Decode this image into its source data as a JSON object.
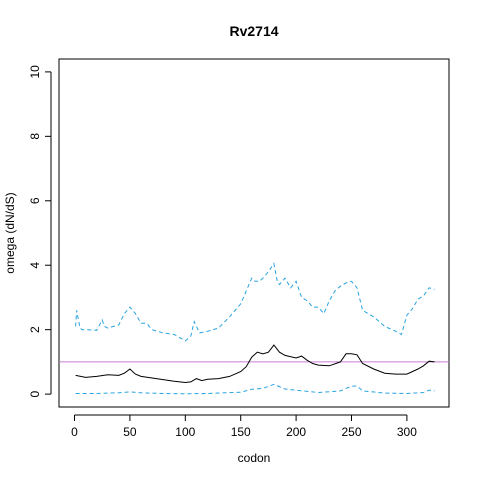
{
  "chart_data": {
    "type": "line",
    "title": "Rv2714",
    "xlabel": "codon",
    "ylabel": "omega (dN/dS)",
    "xlim": [
      -14,
      338
    ],
    "ylim": [
      -0.4,
      10.4
    ],
    "xticks": [
      0,
      50,
      100,
      150,
      200,
      250,
      300
    ],
    "yticks": [
      0,
      2,
      4,
      6,
      8,
      10
    ],
    "grid": false,
    "reference_line": {
      "y": 1.0,
      "color": "#c77fd0"
    },
    "series": [
      {
        "role": "estimate",
        "style": "solid",
        "color": "#000000",
        "x": [
          1,
          10,
          20,
          30,
          40,
          45,
          50,
          55,
          60,
          70,
          80,
          90,
          100,
          105,
          110,
          115,
          120,
          130,
          140,
          150,
          155,
          160,
          165,
          170,
          175,
          180,
          185,
          190,
          200,
          205,
          210,
          215,
          220,
          230,
          240,
          245,
          250,
          255,
          260,
          270,
          280,
          290,
          300,
          310,
          315,
          320,
          325
        ],
        "y": [
          0.58,
          0.52,
          0.55,
          0.6,
          0.58,
          0.65,
          0.78,
          0.62,
          0.55,
          0.5,
          0.45,
          0.4,
          0.36,
          0.38,
          0.48,
          0.42,
          0.46,
          0.48,
          0.55,
          0.7,
          0.85,
          1.15,
          1.3,
          1.25,
          1.3,
          1.52,
          1.3,
          1.2,
          1.12,
          1.18,
          1.05,
          0.95,
          0.9,
          0.88,
          1.0,
          1.25,
          1.25,
          1.22,
          0.95,
          0.78,
          0.65,
          0.62,
          0.62,
          0.78,
          0.88,
          1.02,
          1.0
        ]
      },
      {
        "role": "upper",
        "style": "dashed",
        "color": "#29a3e0",
        "x": [
          1,
          2,
          3,
          5,
          7,
          10,
          20,
          25,
          27,
          30,
          40,
          45,
          50,
          55,
          60,
          65,
          70,
          80,
          90,
          95,
          100,
          105,
          108,
          110,
          113,
          120,
          130,
          140,
          150,
          155,
          160,
          163,
          167,
          170,
          175,
          180,
          183,
          185,
          190,
          195,
          200,
          205,
          210,
          215,
          220,
          225,
          230,
          235,
          240,
          245,
          250,
          255,
          260,
          265,
          270,
          280,
          290,
          295,
          300,
          305,
          310,
          315,
          320,
          325
        ],
        "y": [
          2.1,
          2.6,
          2.4,
          2.05,
          2.0,
          2.0,
          1.98,
          2.3,
          2.1,
          2.05,
          2.15,
          2.5,
          2.7,
          2.5,
          2.2,
          2.2,
          2.0,
          1.9,
          1.85,
          1.75,
          1.65,
          1.8,
          2.25,
          2.1,
          1.9,
          1.95,
          2.05,
          2.4,
          2.8,
          3.2,
          3.6,
          3.5,
          3.5,
          3.6,
          3.8,
          4.05,
          3.5,
          3.4,
          3.6,
          3.3,
          3.5,
          3.0,
          2.9,
          2.7,
          2.7,
          2.5,
          2.9,
          3.2,
          3.35,
          3.45,
          3.5,
          3.3,
          2.6,
          2.5,
          2.4,
          2.1,
          1.95,
          1.85,
          2.45,
          2.65,
          2.95,
          3.05,
          3.3,
          3.25
        ]
      },
      {
        "role": "lower",
        "style": "dashed",
        "color": "#29a3e0",
        "x": [
          1,
          20,
          40,
          50,
          60,
          80,
          100,
          120,
          150,
          160,
          170,
          180,
          190,
          200,
          220,
          240,
          250,
          255,
          260,
          280,
          300,
          315,
          320,
          325
        ],
        "y": [
          0.02,
          0.02,
          0.04,
          0.07,
          0.04,
          0.02,
          0.01,
          0.02,
          0.06,
          0.15,
          0.18,
          0.3,
          0.16,
          0.12,
          0.05,
          0.1,
          0.25,
          0.25,
          0.1,
          0.03,
          0.02,
          0.05,
          0.12,
          0.1
        ]
      }
    ]
  }
}
